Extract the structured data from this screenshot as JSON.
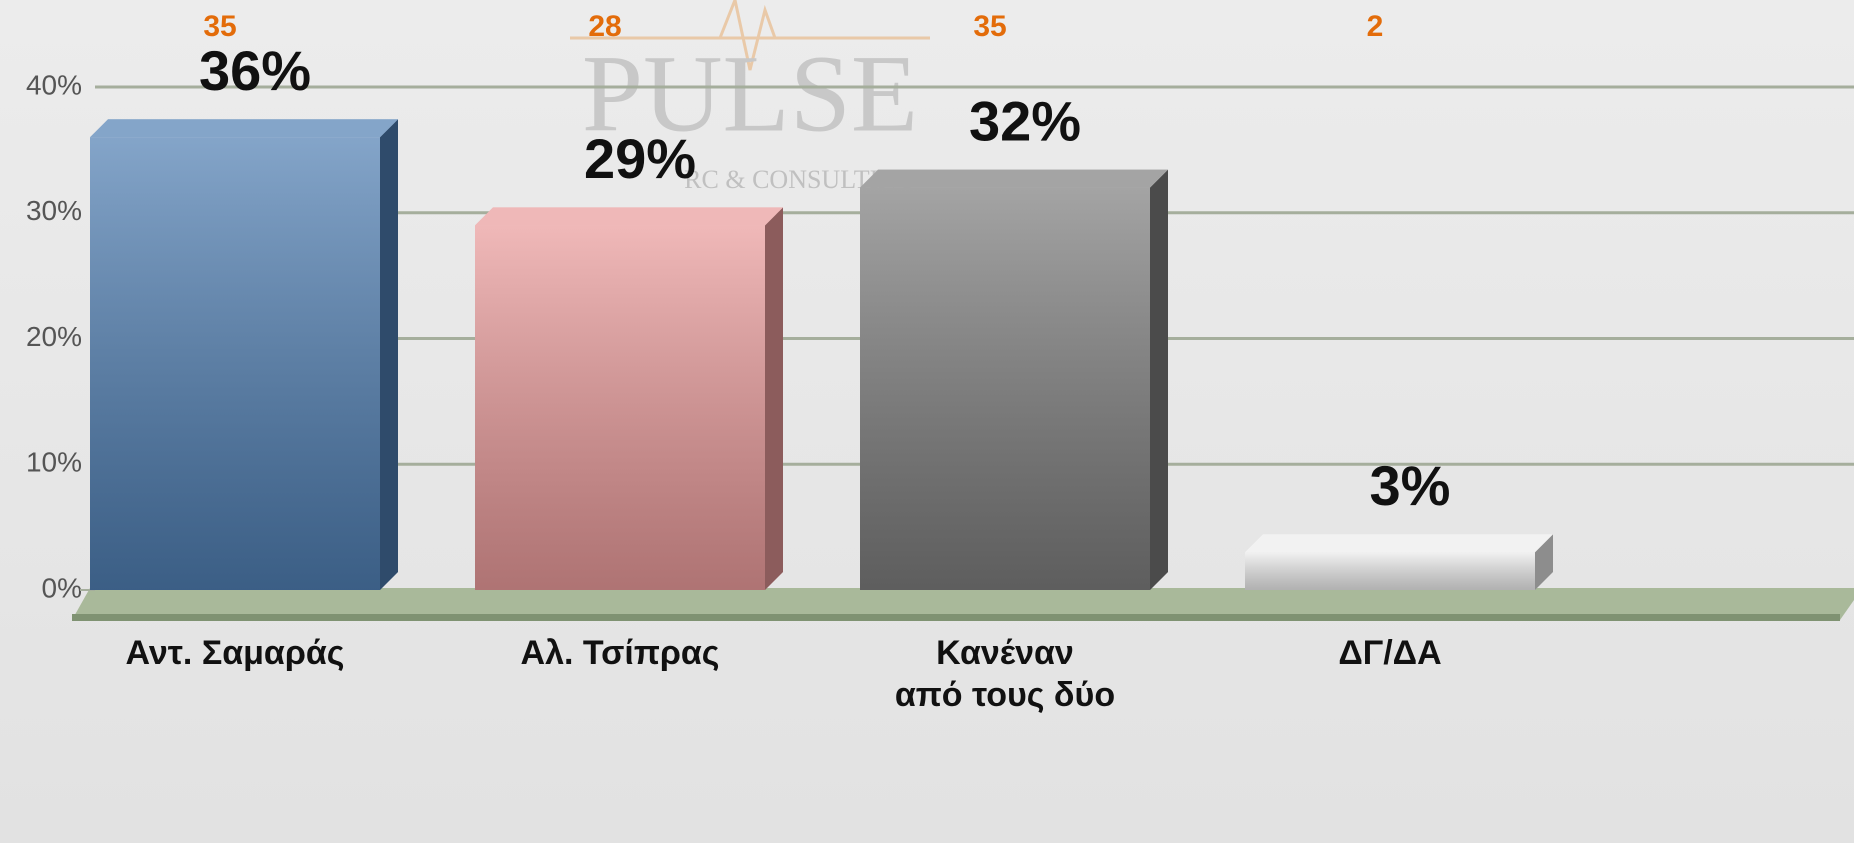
{
  "chart_data": {
    "type": "bar",
    "categories": [
      "Αντ. Σαμαράς",
      "Αλ. Τσίπρας",
      "Κανέναν\nαπό τους δύο",
      "ΔΓ/ΔΑ"
    ],
    "values": [
      36,
      29,
      32,
      3
    ],
    "value_labels": [
      "36%",
      "29%",
      "32%",
      "3%"
    ],
    "top_labels": [
      35,
      28,
      35,
      2
    ],
    "colors": [
      "#4f7eb2",
      "#e99a9a",
      "#7d7d7d",
      "#ececec"
    ],
    "top_label_color": "#e36c0a",
    "watermark": [
      "PULSE",
      "RC & CONSULTING"
    ],
    "ylim": [
      0,
      40
    ],
    "yticks": [
      {
        "value": 0,
        "label": "0%"
      },
      {
        "value": 10,
        "label": "10%"
      },
      {
        "value": 20,
        "label": "20%"
      },
      {
        "value": 30,
        "label": "30%"
      },
      {
        "value": 40,
        "label": "40%"
      }
    ],
    "grid": true
  }
}
